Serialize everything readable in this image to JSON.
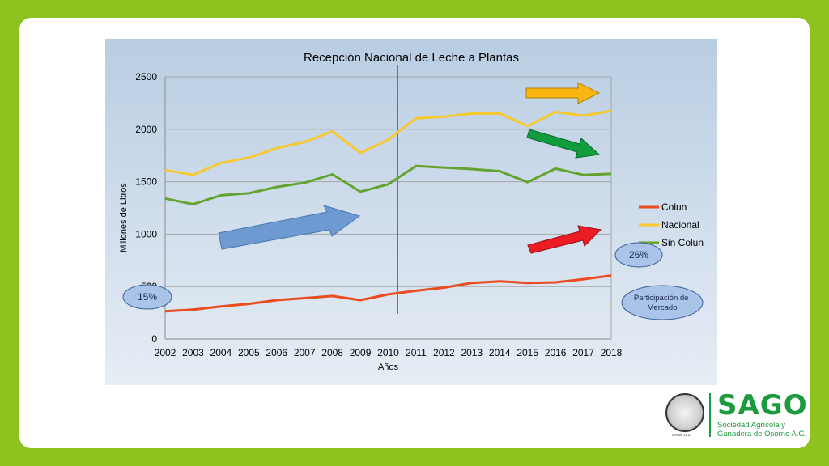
{
  "chart_data": {
    "type": "line",
    "title": "Recepción Nacional de Leche a Plantas",
    "xlabel": "Años",
    "ylabel": "Millones de Litros",
    "ylim": [
      0,
      2500
    ],
    "yticks": [
      0,
      500,
      1000,
      1500,
      2000,
      2500
    ],
    "x": [
      "2002",
      "2003",
      "2004",
      "2005",
      "2006",
      "2007",
      "2008",
      "2009",
      "2010",
      "2011",
      "2012",
      "2013",
      "2014",
      "2015",
      "2016",
      "2017",
      "2018"
    ],
    "series": [
      {
        "name": "Colun",
        "color": "#ea4b1f",
        "values": [
          265,
          280,
          310,
          335,
          370,
          390,
          410,
          370,
          425,
          460,
          490,
          535,
          550,
          535,
          540,
          570,
          605
        ]
      },
      {
        "name": "Nacional",
        "color": "#f6c92f",
        "values": [
          1610,
          1565,
          1680,
          1730,
          1820,
          1880,
          1980,
          1775,
          1900,
          2105,
          2120,
          2150,
          2150,
          2030,
          2165,
          2130,
          2175
        ]
      },
      {
        "name": "Sin Colun",
        "color": "#64a32f",
        "values": [
          1340,
          1285,
          1370,
          1390,
          1450,
          1490,
          1570,
          1405,
          1475,
          1650,
          1635,
          1620,
          1600,
          1495,
          1625,
          1565,
          1575
        ]
      }
    ],
    "grid": true,
    "legend": "right",
    "marker_year": "2010",
    "annotations": {
      "colun_start_share": "15%",
      "colun_end_share": "26%",
      "share_label": "Participación de Mercado"
    }
  },
  "colors": {
    "background": "#8dc21f",
    "slide": "#ffffff",
    "plot_gradient_top": "#b9cde2",
    "plot_gradient_bottom": "#e6edf5",
    "arrow_blue": "#6f9ad1",
    "arrow_yellow": "#f9b613",
    "arrow_green": "#119c3e",
    "arrow_red": "#ec1c24",
    "oval": "#a9c4e8"
  },
  "logo": {
    "brand": "SAGO",
    "subtitle_line1": "Sociedad Agrícola y",
    "subtitle_line2": "Ganadera de Osorno A.G.",
    "seal_text": "Desde 1917"
  }
}
